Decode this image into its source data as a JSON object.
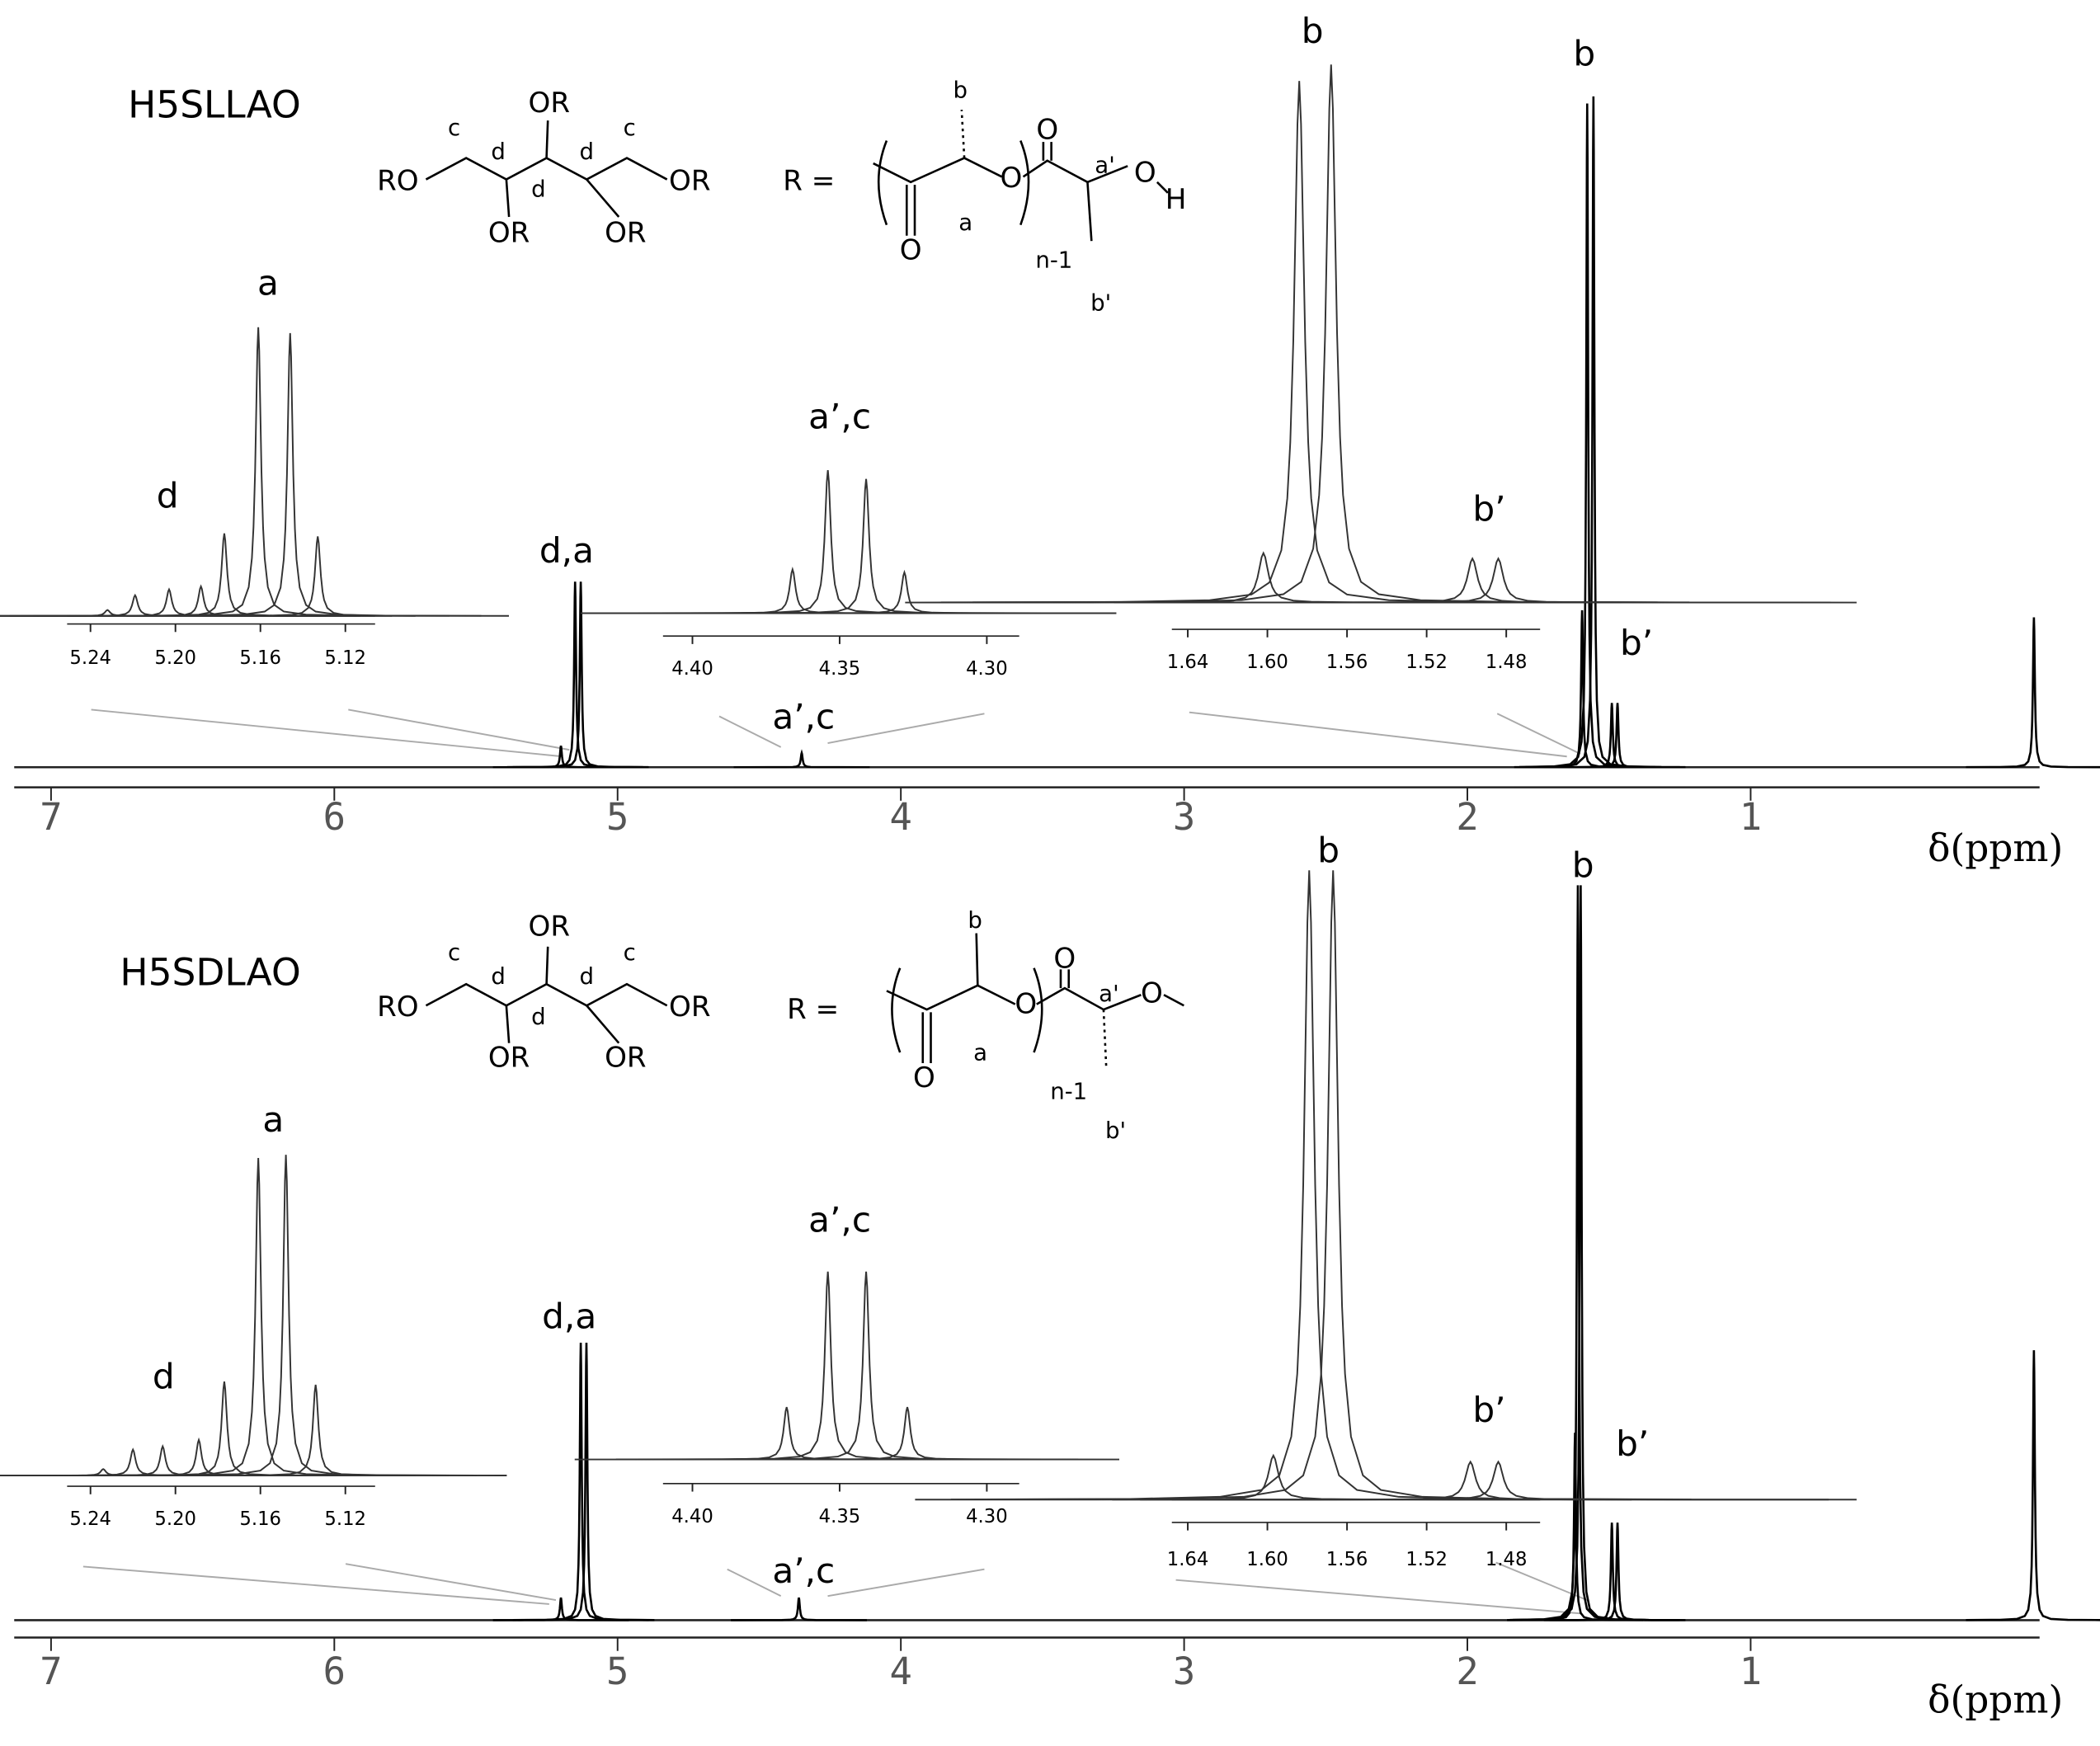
{
  "chart_data": [
    {
      "type": "spectrum",
      "title": "H5SLLAO",
      "xlabel": "δ(ppm)",
      "xlim": [
        7.13,
        -0.02
      ],
      "ylim": [
        0,
        100
      ],
      "xticks": [
        7,
        6,
        5,
        4,
        3,
        2,
        1
      ],
      "x": [
        5.2,
        5.15,
        5.13,
        4.35,
        1.595,
        1.577,
        1.555,
        1.49,
        1.47,
        0
      ],
      "values": [
        3,
        26,
        26,
        2,
        22,
        93,
        94,
        9,
        9,
        21
      ],
      "annotations": [
        "d,a",
        "a’,c",
        "b",
        "b’"
      ]
    },
    {
      "type": "spectrum",
      "xlim": [
        5.251,
        5.106
      ],
      "ylim": [
        0,
        100
      ],
      "xticks": [
        5.24,
        {
          "value": 5.2,
          "label": "5.20"
        },
        5.16,
        5.12
      ],
      "x": [
        5.232,
        5.219,
        5.203,
        5.188,
        5.177,
        5.161,
        5.146,
        5.133
      ],
      "values": [
        2,
        7,
        9,
        10,
        28,
        98,
        96,
        27
      ],
      "annotations": [
        "a",
        "d"
      ]
    },
    {
      "type": "spectrum",
      "xlim": [
        4.41,
        4.289
      ],
      "ylim": [
        0,
        100
      ],
      "xticks": [
        {
          "value": 4.4,
          "label": "4.40"
        },
        4.35,
        {
          "value": 4.3,
          "label": "4.30"
        }
      ],
      "x": [
        4.366,
        4.354,
        4.341,
        4.328
      ],
      "values": [
        15,
        49,
        46,
        14
      ],
      "annotations": [
        "a’,c"
      ]
    },
    {
      "type": "spectrum",
      "xlim": [
        1.648,
        1.463
      ],
      "ylim": [
        0,
        100
      ],
      "xticks": [
        1.64,
        {
          "value": 1.6,
          "label": "1.60"
        },
        1.56,
        1.52,
        1.48
      ],
      "x": [
        1.602,
        1.584,
        1.568,
        1.497,
        1.484
      ],
      "values": [
        9,
        95,
        98,
        8,
        8
      ],
      "annotations": [
        "b",
        "b’"
      ]
    },
    {
      "type": "spectrum",
      "title": "H5SDLAO",
      "xlabel": "δ(ppm)",
      "xlim": [
        7.13,
        -0.02
      ],
      "ylim": [
        0,
        100
      ],
      "xticks": [
        7,
        6,
        5,
        4,
        3,
        2,
        1
      ],
      "x": [
        5.2,
        5.13,
        5.11,
        4.36,
        1.62,
        1.61,
        1.6,
        1.49,
        1.47,
        0
      ],
      "values": [
        3,
        37,
        37,
        3,
        25,
        98,
        98,
        13,
        13,
        36
      ],
      "annotations": [
        "d,a",
        "a’,c",
        "b",
        "b’"
      ]
    },
    {
      "type": "spectrum",
      "xlim": [
        5.251,
        5.106
      ],
      "ylim": [
        0,
        100
      ],
      "xticks": [
        5.24,
        {
          "value": 5.2,
          "label": "5.20"
        },
        5.16,
        5.12
      ],
      "x": [
        5.234,
        5.22,
        5.206,
        5.189,
        5.177,
        5.161,
        5.148,
        5.134
      ],
      "values": [
        2,
        8,
        9,
        11,
        29,
        98,
        99,
        28
      ],
      "annotations": [
        "a",
        "d"
      ]
    },
    {
      "type": "spectrum",
      "xlim": [
        4.41,
        4.289
      ],
      "ylim": [
        0,
        100
      ],
      "xticks": [
        {
          "value": 4.4,
          "label": "4.40"
        },
        4.35,
        {
          "value": 4.3,
          "label": "4.30"
        }
      ],
      "x": [
        4.368,
        4.354,
        4.341,
        4.327
      ],
      "values": [
        17,
        61,
        61,
        17
      ],
      "annotations": [
        "a’,c"
      ]
    },
    {
      "type": "spectrum",
      "xlim": [
        1.648,
        1.463
      ],
      "ylim": [
        0,
        100
      ],
      "xticks": [
        1.64,
        {
          "value": 1.6,
          "label": "1.60"
        },
        1.56,
        1.52,
        1.48
      ],
      "x": [
        1.597,
        1.579,
        1.567,
        1.498,
        1.484
      ],
      "values": [
        7,
        100,
        100,
        6,
        6
      ],
      "annotations": [
        "b",
        "b’"
      ]
    }
  ],
  "structures": [
    {
      "labels": [
        "OR",
        "c",
        "d",
        "d",
        "c",
        "RO",
        "OR",
        "d",
        "OR",
        "OR",
        "R =",
        "b",
        "O",
        "a'",
        "O",
        "H",
        "a",
        "O",
        "O",
        "n-1",
        "b'"
      ]
    },
    {
      "labels": [
        "OR",
        "c",
        "d",
        "d",
        "c",
        "RO",
        "OR",
        "d",
        "OR",
        "OR",
        "R =",
        "b",
        "O",
        "a'",
        "O",
        "a",
        "O",
        "O",
        "n-1",
        "b'"
      ]
    }
  ]
}
